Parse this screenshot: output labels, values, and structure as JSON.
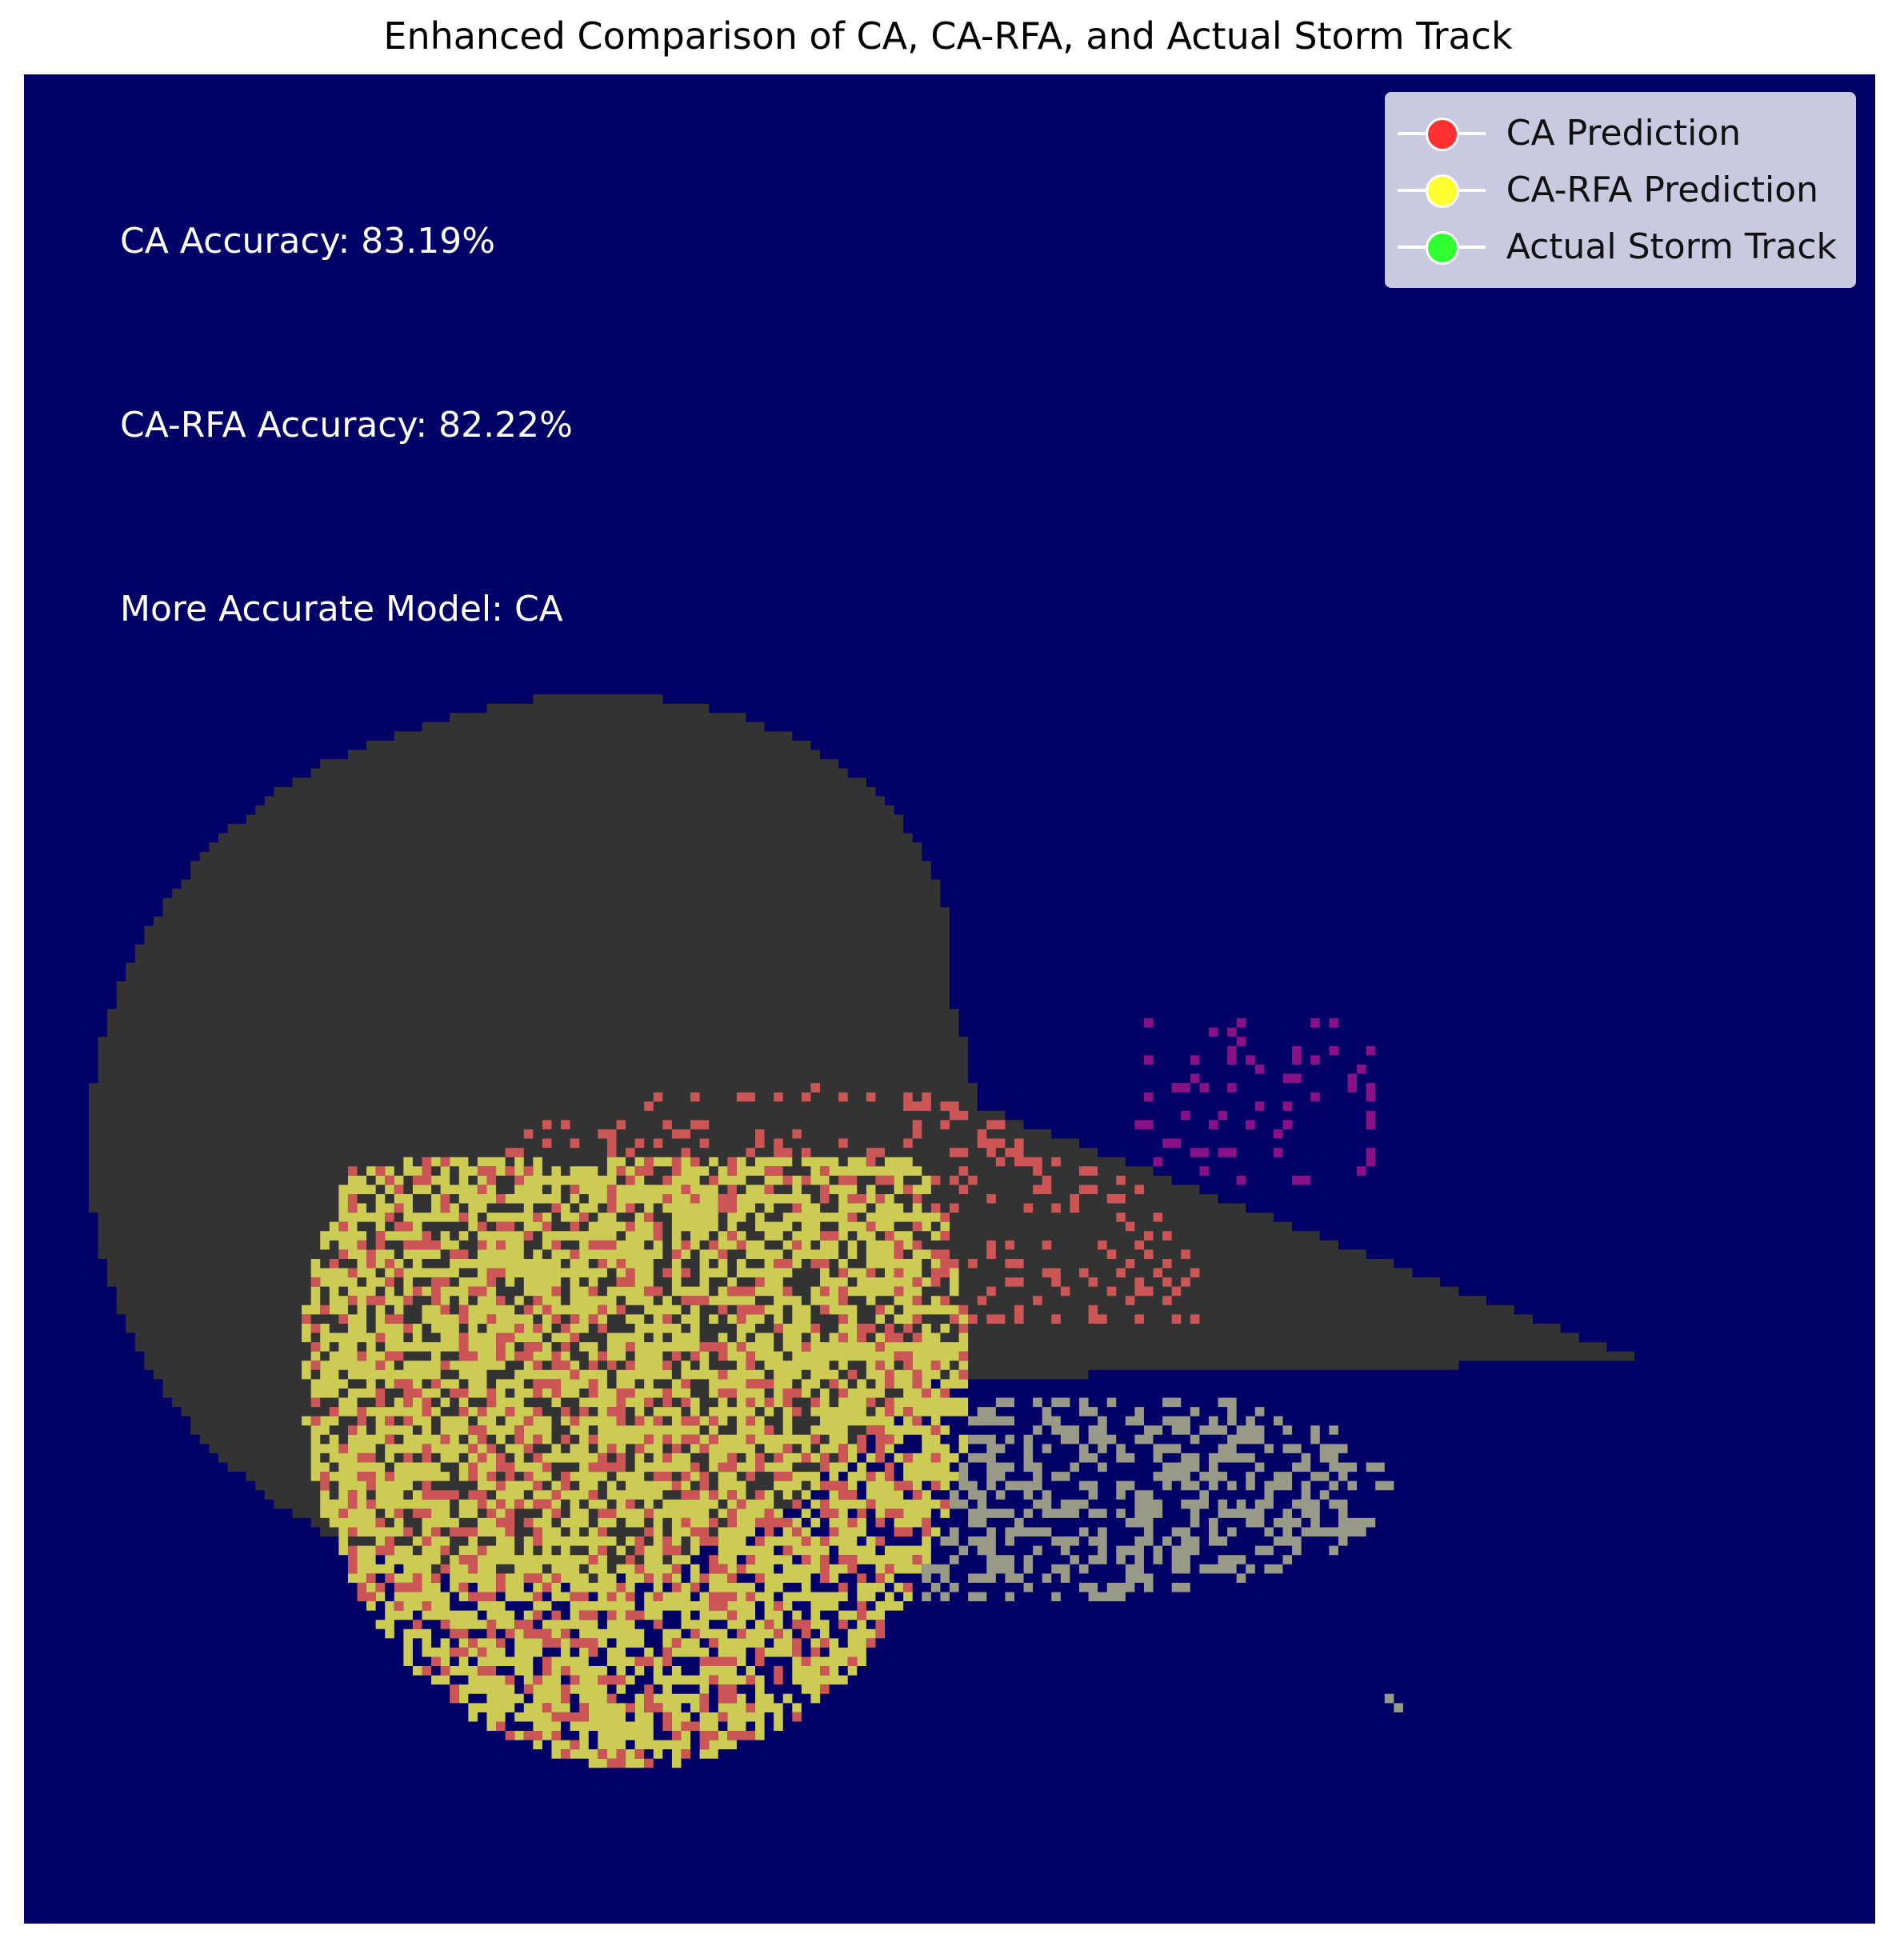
{
  "title": "Enhanced Comparison of CA, CA-RFA, and Actual Storm Track",
  "annotations": [
    {
      "id": "ca-accuracy",
      "text": "CA Accuracy: 83.19%"
    },
    {
      "id": "carfa-accuracy",
      "text": "CA-RFA Accuracy: 82.22%"
    },
    {
      "id": "more-accurate",
      "text": "More Accurate Model: CA"
    }
  ],
  "legend": [
    {
      "label": "CA Prediction",
      "color": "#ff3030"
    },
    {
      "label": "CA-RFA Prediction",
      "color": "#ffff30"
    },
    {
      "label": "Actual Storm Track",
      "color": "#30ff30"
    }
  ],
  "colors": {
    "background": "#000066",
    "ca_only": "#cc5555",
    "carfa": "#cccc55",
    "actual": "#999988",
    "outer_region": "#333333",
    "scatter": "#881188"
  },
  "chart_data": {
    "type": "heatmap",
    "grid_size": [
      200,
      200
    ],
    "axes_visible": false,
    "title": "Enhanced Comparison of CA, CA-RFA, and Actual Storm Track",
    "series": [
      {
        "name": "CA Prediction",
        "color": "#ff3030"
      },
      {
        "name": "CA-RFA Prediction",
        "color": "#ffff30"
      },
      {
        "name": "Actual Storm Track",
        "color": "#30ff30"
      }
    ],
    "metrics": {
      "ca_accuracy_percent": 83.19,
      "carfa_accuracy_percent": 82.22,
      "more_accurate_model": "CA"
    },
    "legend_position": "top-right"
  }
}
